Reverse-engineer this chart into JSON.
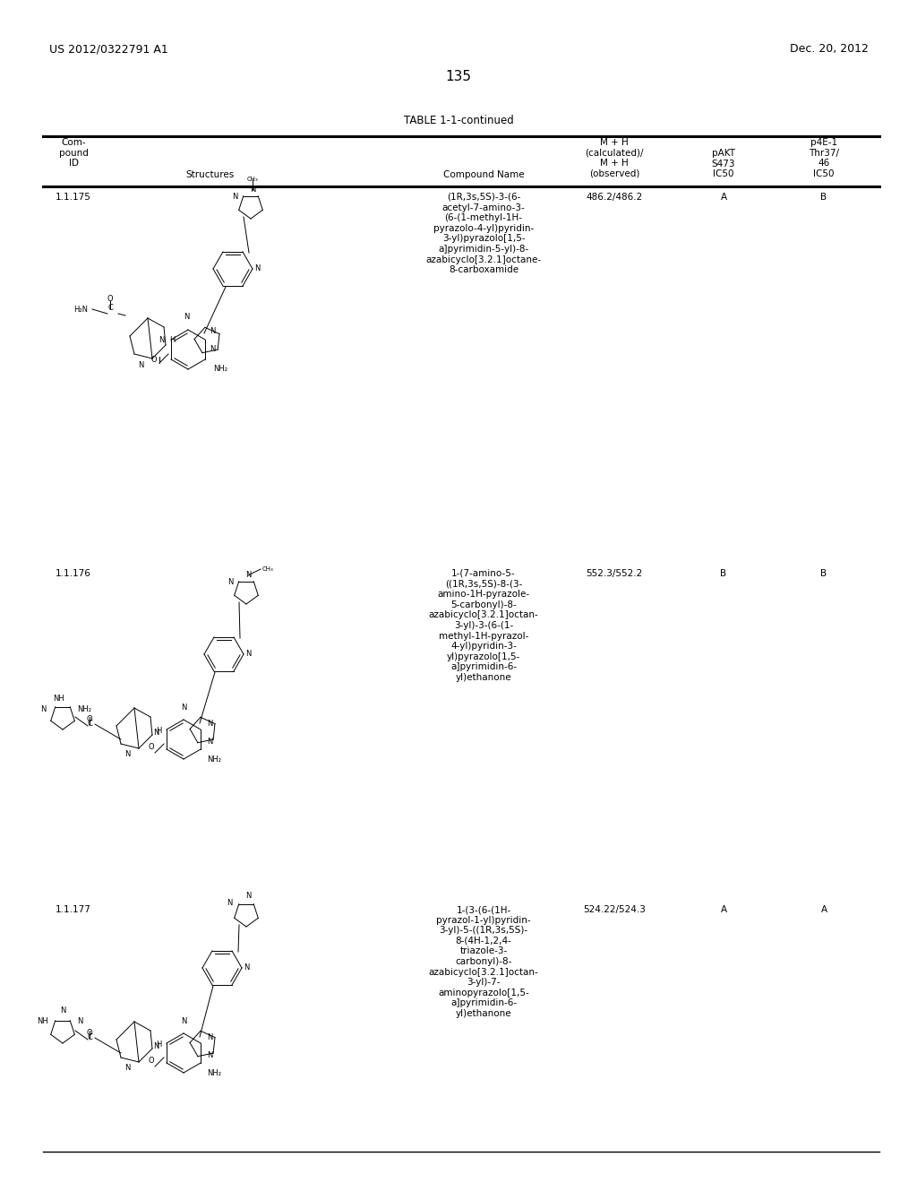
{
  "page_number": "135",
  "patent_number": "US 2012/0322791 A1",
  "patent_date": "Dec. 20, 2012",
  "table_title": "TABLE 1-1-continued",
  "col_headers": {
    "col1": "Com-\npound\nID",
    "col2": "Structures",
    "col3": "Compound Name",
    "col4_line1": "M + H",
    "col4_line2": "(calculated)/",
    "col4_line3": "M + H",
    "col4_line4": "(observed)",
    "col5_line1": "pAKT",
    "col5_line2": "S473",
    "col5_line3": "IC50",
    "col6_line1": "p4E-1",
    "col6_line2": "Thr37/",
    "col6_line3": "46",
    "col6_line4": "IC50"
  },
  "rows": [
    {
      "id": "1.1.175",
      "compound_name": "(1R,3s,5S)-3-(6-\nacetyl-7-amino-3-\n(6-(1-methyl-1H-\npyrazolo-4-yl)pyridin-\n3-yl)pyrazolo[1,5-\na]pyrimidin-5-yl)-8-\nazabicyclo[3.2.1]octane-\n8-carboxamide",
      "mh": "486.2/486.2",
      "pakt": "A",
      "p4e1": "B"
    },
    {
      "id": "1.1.176",
      "compound_name": "1-(7-amino-5-\n((1R,3s,5S)-8-(3-\namino-1H-pyrazole-\n5-carbonyl)-8-\nazabicyclo[3.2.1]octan-\n3-yl)-3-(6-(1-\nmethyl-1H-pyrazol-\n4-yl)pyridin-3-\nyl)pyrazolo[1,5-\na]pyrimidin-6-\nyl)ethanone",
      "mh": "552.3/552.2",
      "pakt": "B",
      "p4e1": "B"
    },
    {
      "id": "1.1.177",
      "compound_name": "1-(3-(6-(1H-\npyrazol-1-yl)pyridin-\n3-yl)-5-((1R,3s,5S)-\n8-(4H-1,2,4-\ntriazole-3-\ncarbonyl)-8-\nazabicyclo[3.2.1]octan-\n3-yl)-7-\naminopyrazolo[1,5-\na]pyrimidin-6-\nyl)ethanone",
      "mh": "524.22/524.3",
      "pakt": "A",
      "p4e1": "A"
    }
  ],
  "bg_color": "#ffffff",
  "text_color": "#000000",
  "font_size_header": 8,
  "font_size_body": 7.5,
  "font_size_page": 9,
  "font_size_patent": 9
}
